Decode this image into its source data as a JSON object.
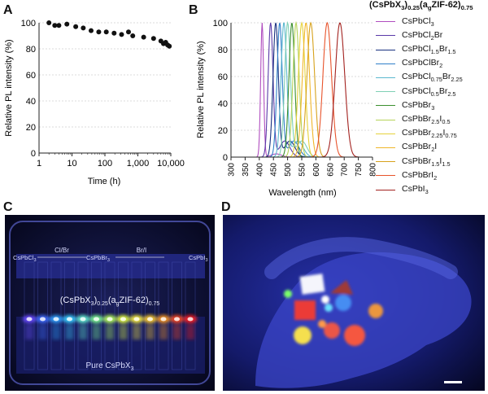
{
  "panels": {
    "a": "A",
    "b": "B",
    "c": "C",
    "d": "D"
  },
  "panel_a": {
    "ylabel": "Relative PL intensity (%)",
    "xlabel": "Time (h)",
    "yticks": [
      "0",
      "20",
      "40",
      "60",
      "80",
      "100"
    ],
    "xticks": [
      "1",
      "10",
      "100",
      "1,000",
      "10,000"
    ]
  },
  "panel_b": {
    "ylabel": "Relative PL intensity (%)",
    "xlabel": "Wavelength (nm)",
    "yticks": [
      "0",
      "20",
      "40",
      "60",
      "80",
      "100"
    ],
    "xticks": [
      "300",
      "350",
      "400",
      "450",
      "500",
      "550",
      "600",
      "650",
      "700",
      "750",
      "800"
    ],
    "legend_title": {
      "p1": "(CsPbX",
      "s1": "3",
      "p2": ")",
      "s2": "0.25",
      "p3": "(a",
      "s3": "g",
      "p4": "ZIF-62)",
      "s4": "0.75"
    },
    "legend": [
      {
        "color": "#b04dbf",
        "parts": [
          {
            "t": "CsPbCl",
            "s": false
          },
          {
            "t": "3",
            "s": true
          }
        ]
      },
      {
        "color": "#5a3aa8",
        "parts": [
          {
            "t": "CsPbCl",
            "s": false
          },
          {
            "t": "2",
            "s": true
          },
          {
            "t": "Br",
            "s": false
          }
        ]
      },
      {
        "color": "#17307f",
        "parts": [
          {
            "t": "CsPbCl",
            "s": false
          },
          {
            "t": "1.5",
            "s": true
          },
          {
            "t": "Br",
            "s": false
          },
          {
            "t": "1.5",
            "s": true
          }
        ]
      },
      {
        "color": "#2f7fc9",
        "parts": [
          {
            "t": "CsPbClBr",
            "s": false
          },
          {
            "t": "2",
            "s": true
          }
        ]
      },
      {
        "color": "#5cb8cf",
        "parts": [
          {
            "t": "CsPbCl",
            "s": false
          },
          {
            "t": "0.75",
            "s": true
          },
          {
            "t": "Br",
            "s": false
          },
          {
            "t": "2.25",
            "s": true
          }
        ]
      },
      {
        "color": "#7fd0b5",
        "parts": [
          {
            "t": "CsPbCl",
            "s": false
          },
          {
            "t": "0.5",
            "s": true
          },
          {
            "t": "Br",
            "s": false
          },
          {
            "t": "2.5",
            "s": true
          }
        ]
      },
      {
        "color": "#3c8f2f",
        "parts": [
          {
            "t": "CsPbBr",
            "s": false
          },
          {
            "t": "3",
            "s": true
          }
        ]
      },
      {
        "color": "#b6d35a",
        "parts": [
          {
            "t": "CsPbBr",
            "s": false
          },
          {
            "t": "2.5",
            "s": true
          },
          {
            "t": "I",
            "s": false
          },
          {
            "t": "0.5",
            "s": true
          }
        ]
      },
      {
        "color": "#e6d23a",
        "parts": [
          {
            "t": "CsPbBr",
            "s": false
          },
          {
            "t": "2.25",
            "s": true
          },
          {
            "t": "I",
            "s": false
          },
          {
            "t": "0.75",
            "s": true
          }
        ]
      },
      {
        "color": "#f0b62a",
        "parts": [
          {
            "t": "CsPbBr",
            "s": false
          },
          {
            "t": "2",
            "s": true
          },
          {
            "t": "I",
            "s": false
          }
        ]
      },
      {
        "color": "#d7a21d",
        "parts": [
          {
            "t": "CsPbBr",
            "s": false
          },
          {
            "t": "1.5",
            "s": true
          },
          {
            "t": "I",
            "s": false
          },
          {
            "t": "1.5",
            "s": true
          }
        ]
      },
      {
        "color": "#e8532b",
        "parts": [
          {
            "t": "CsPbBrI",
            "s": false
          },
          {
            "t": "2",
            "s": true
          }
        ]
      },
      {
        "color": "#a3221f",
        "parts": [
          {
            "t": "CsPbI",
            "s": false
          },
          {
            "t": "3",
            "s": true
          }
        ]
      }
    ]
  },
  "chart_data": [
    {
      "type": "scatter",
      "xlabel": "Time (h)",
      "ylabel": "Relative PL intensity (%)",
      "xscale": "log",
      "xlim": [
        1,
        10000
      ],
      "ylim": [
        0,
        100
      ],
      "grid": true,
      "x": [
        2,
        3,
        4,
        7,
        13,
        22,
        38,
        65,
        110,
        190,
        320,
        520,
        700,
        1500,
        3000,
        5000,
        6000,
        7000,
        8000,
        9000
      ],
      "y": [
        100,
        98,
        98,
        99,
        97,
        96,
        94,
        93,
        93,
        92,
        91,
        93,
        90,
        89,
        88,
        86,
        84,
        85,
        83,
        82
      ]
    },
    {
      "type": "line",
      "xlabel": "Wavelength (nm)",
      "ylabel": "Relative PL intensity (%)",
      "xlim": [
        300,
        800
      ],
      "ylim": [
        0,
        100
      ],
      "grid": true,
      "series_peaks_nm": [
        410,
        440,
        458,
        472,
        487,
        500,
        515,
        530,
        550,
        565,
        582,
        640,
        685
      ],
      "series_fwhm_nm": [
        12,
        20,
        22,
        22,
        24,
        24,
        24,
        26,
        28,
        30,
        32,
        36,
        40
      ],
      "series_peak_values": [
        100,
        100,
        100,
        100,
        100,
        100,
        100,
        100,
        100,
        100,
        100,
        100,
        100
      ]
    }
  ],
  "photo_c": {
    "group_a": "Cl/Br",
    "group_b": "Br/I",
    "left_end": "CsPbCl",
    "left_end_sub": "3",
    "mid": "CsPbBr",
    "mid_sub": "3",
    "right_end": "CsPbI",
    "right_end_sub": "3",
    "composite": {
      "p1": "(CsPbX",
      "s1": "3",
      "p2": ")",
      "s2": "0.25",
      "p3": "(a",
      "s3": "g",
      "p4": "ZIF-62)",
      "s4": "0.75"
    },
    "pure_label": "Pure CsPbX",
    "pure_sub": "3",
    "glow_colors": [
      "#6b4cff",
      "#3f6dff",
      "#2ea3ff",
      "#3ad0ff",
      "#62f0d0",
      "#7dff8e",
      "#b6ff5a",
      "#e6ff3a",
      "#fff23a",
      "#ffce2a",
      "#ff9a1f",
      "#ff4a1a",
      "#ff1a1a"
    ]
  },
  "photo_d": {
    "glow_colors": [
      "#ffffff",
      "#ff3a2a",
      "#ffe84a",
      "#7aff6a",
      "#6ae0ff",
      "#ff9a4a",
      "#ff5a3a",
      "#ffa030"
    ]
  }
}
